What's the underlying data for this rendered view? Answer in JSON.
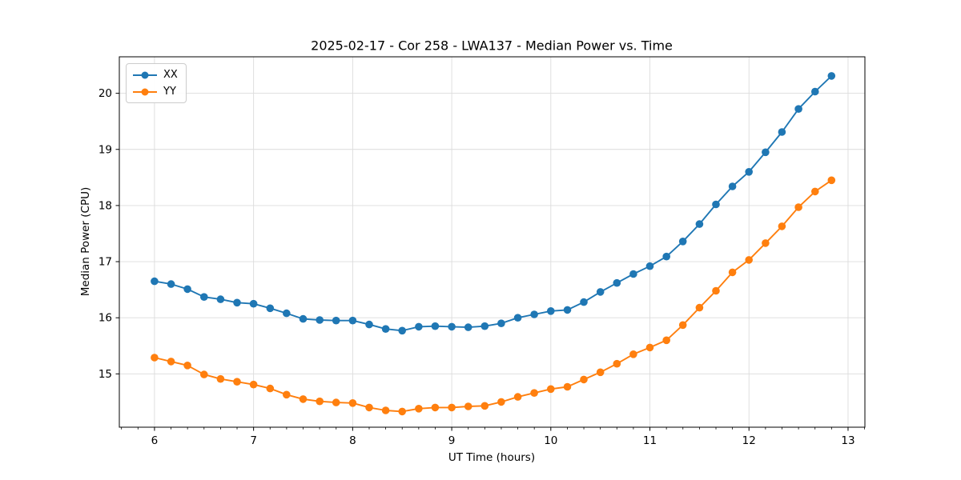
{
  "figure": {
    "background": "#ffffff",
    "spine_color": "#000000",
    "grid_color": "#dcdcdc",
    "text_color": "#000000"
  },
  "chart_data": {
    "type": "line",
    "title": "2025-02-17 - Cor 258 - LWA137 - Median Power vs. Time",
    "xlabel": "UT Time (hours)",
    "ylabel": "Median Power (CPU)",
    "xlim": [
      5.645,
      13.17
    ],
    "ylim": [
      14.05,
      20.65
    ],
    "grid": true,
    "legend_position": "upper left",
    "x_ticks": [
      6,
      7,
      8,
      9,
      10,
      11,
      12,
      13
    ],
    "x_tick_labels": [
      "6",
      "7",
      "8",
      "9",
      "10",
      "11",
      "12",
      "13"
    ],
    "x_minor_tick_step": 0.166667,
    "y_ticks": [
      15,
      16,
      17,
      18,
      19,
      20
    ],
    "y_tick_labels": [
      "15",
      "16",
      "17",
      "18",
      "19",
      "20"
    ],
    "x": [
      6.0,
      6.167,
      6.333,
      6.5,
      6.667,
      6.833,
      7.0,
      7.167,
      7.333,
      7.5,
      7.667,
      7.833,
      8.0,
      8.167,
      8.333,
      8.5,
      8.667,
      8.833,
      9.0,
      9.167,
      9.333,
      9.5,
      9.667,
      9.833,
      10.0,
      10.167,
      10.333,
      10.5,
      10.667,
      10.833,
      11.0,
      11.167,
      11.333,
      11.5,
      11.667,
      11.833,
      12.0,
      12.167,
      12.333,
      12.5,
      12.667,
      12.833
    ],
    "series": [
      {
        "name": "XX",
        "color": "#1f77b4",
        "values": [
          16.65,
          16.6,
          16.51,
          16.37,
          16.33,
          16.27,
          16.25,
          16.17,
          16.08,
          15.98,
          15.96,
          15.95,
          15.95,
          15.88,
          15.8,
          15.77,
          15.84,
          15.85,
          15.84,
          15.83,
          15.85,
          15.9,
          16.0,
          16.06,
          16.12,
          16.14,
          16.28,
          16.46,
          16.62,
          16.78,
          16.92,
          17.09,
          17.36,
          17.67,
          18.02,
          18.34,
          18.6,
          18.95,
          19.31,
          19.72,
          20.03,
          20.31
        ]
      },
      {
        "name": "YY",
        "color": "#ff7f0e",
        "values": [
          15.29,
          15.22,
          15.15,
          14.99,
          14.91,
          14.86,
          14.81,
          14.74,
          14.63,
          14.55,
          14.51,
          14.49,
          14.48,
          14.4,
          14.35,
          14.33,
          14.38,
          14.4,
          14.4,
          14.42,
          14.43,
          14.5,
          14.59,
          14.66,
          14.73,
          14.77,
          14.9,
          15.03,
          15.18,
          15.35,
          15.47,
          15.6,
          15.87,
          16.18,
          16.48,
          16.81,
          17.03,
          17.33,
          17.63,
          17.97,
          18.25,
          18.45
        ]
      }
    ]
  }
}
